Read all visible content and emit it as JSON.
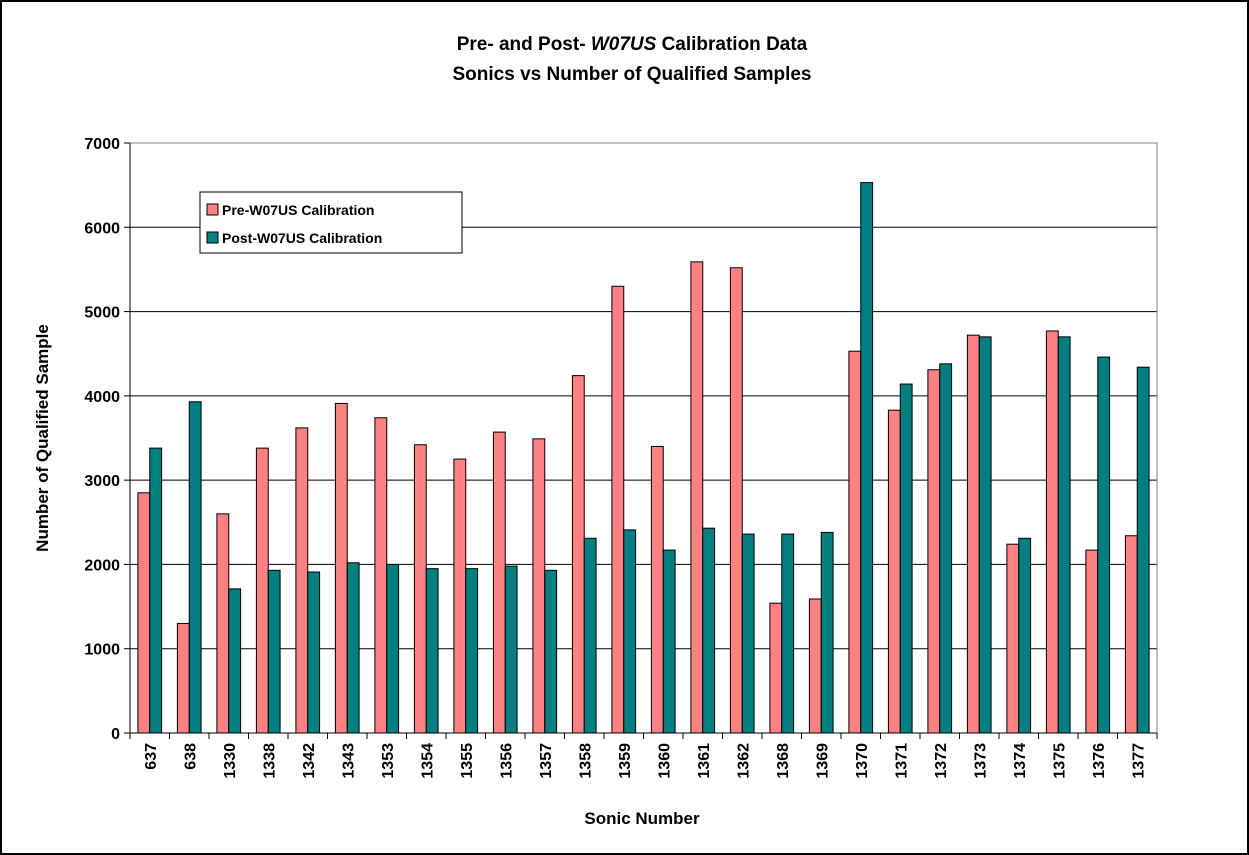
{
  "chart_data": {
    "type": "bar",
    "title": [
      "Pre- and Post-",
      "W07US",
      "Calibration Data"
    ],
    "subtitle": "Sonics vs Number of Qualified Samples",
    "x_label": "Sonic Number",
    "y_label": "Number of Qualified Sample",
    "categories": [
      "637",
      "638",
      "1330",
      "1338",
      "1342",
      "1343",
      "1353",
      "1354",
      "1355",
      "1356",
      "1357",
      "1358",
      "1359",
      "1360",
      "1361",
      "1362",
      "1368",
      "1369",
      "1370",
      "1371",
      "1372",
      "1373",
      "1374",
      "1375",
      "1376",
      "1377"
    ],
    "series": [
      {
        "name": "Pre-W07US Calibration",
        "color": "#ff8080",
        "values": [
          2850,
          1300,
          2600,
          3380,
          3620,
          3910,
          3740,
          3420,
          3250,
          3570,
          3490,
          4240,
          5300,
          3400,
          5590,
          5520,
          1540,
          1590,
          4530,
          3830,
          4310,
          4720,
          2240,
          4770,
          2170,
          2340
        ]
      },
      {
        "name": "Post-W07US Calibration",
        "color": "#008080",
        "values": [
          3380,
          3930,
          1710,
          1930,
          1910,
          2020,
          2000,
          1950,
          1950,
          1980,
          1930,
          2310,
          2410,
          2170,
          2430,
          2360,
          2360,
          2380,
          6530,
          4140,
          4380,
          4700,
          2310,
          4700,
          4460,
          4340
        ]
      }
    ],
    "ylim": [
      0,
      7000
    ],
    "yticks": [
      0,
      1000,
      2000,
      3000,
      4000,
      5000,
      6000,
      7000
    ],
    "grid": true
  }
}
